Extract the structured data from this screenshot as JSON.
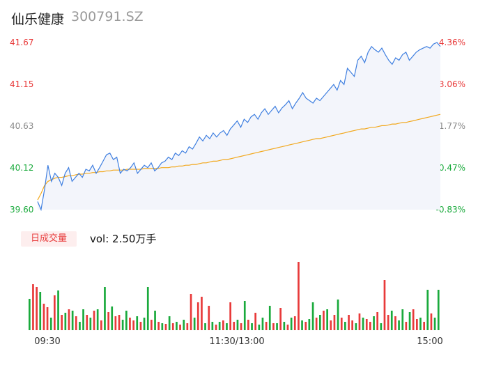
{
  "header": {
    "name": "仙乐健康",
    "code": "300791.SZ"
  },
  "volume_panel": {
    "badge": "日成交量",
    "volume_text": "vol: 2.50万手"
  },
  "colors": {
    "price": "#3f7fe0",
    "avg": "#f2a81d",
    "up": "#e83a3a",
    "down": "#1aaa3c",
    "area": "#f3f5fb",
    "neutral": "#888888"
  },
  "chart_data": {
    "type": "line",
    "title": "",
    "y_left_ticks": [
      "41.67",
      "41.15",
      "40.63",
      "40.12",
      "39.60"
    ],
    "y_right_ticks": [
      "4.36%",
      "3.06%",
      "1.77%",
      "0.47%",
      "-0.83%"
    ],
    "y_left_range": [
      39.6,
      41.67
    ],
    "x_ticks": [
      "09:30",
      "11:30/13:00",
      "15:00"
    ],
    "series": [
      {
        "values": [
          39.7,
          39.6,
          39.85,
          40.15,
          39.95,
          40.05,
          40.0,
          39.9,
          40.05,
          40.12,
          39.95,
          40.0,
          40.05,
          40.0,
          40.1,
          40.08,
          40.15,
          40.05,
          40.12,
          40.2,
          40.28,
          40.3,
          40.22,
          40.25,
          40.05,
          40.1,
          40.08,
          40.12,
          40.18,
          40.05,
          40.1,
          40.15,
          40.12,
          40.18,
          40.08,
          40.12,
          40.18,
          40.2,
          40.25,
          40.22,
          40.3,
          40.27,
          40.33,
          40.3,
          40.38,
          40.35,
          40.42,
          40.5,
          40.45,
          40.52,
          40.48,
          40.55,
          40.5,
          40.55,
          40.58,
          40.52,
          40.6,
          40.65,
          40.7,
          40.62,
          40.72,
          40.68,
          40.75,
          40.78,
          40.72,
          40.8,
          40.85,
          40.78,
          40.83,
          40.88,
          40.8,
          40.86,
          40.9,
          40.95,
          40.85,
          40.92,
          40.98,
          41.05,
          40.98,
          40.95,
          40.92,
          40.98,
          40.95,
          41.0,
          41.05,
          41.1,
          41.15,
          41.08,
          41.2,
          41.15,
          41.35,
          41.3,
          41.25,
          41.45,
          41.5,
          41.42,
          41.55,
          41.62,
          41.58,
          41.55,
          41.6,
          41.52,
          41.45,
          41.4,
          41.48,
          41.45,
          41.52,
          41.55,
          41.45,
          41.5,
          41.55,
          41.58,
          41.6,
          41.62,
          41.6,
          41.65,
          41.67,
          41.62
        ],
        "label_visible": false
      },
      {
        "values": [
          39.72,
          39.8,
          39.9,
          39.95,
          39.97,
          39.99,
          40.0,
          40.0,
          40.01,
          40.02,
          40.02,
          40.03,
          40.04,
          40.04,
          40.05,
          40.05,
          40.06,
          40.06,
          40.07,
          40.07,
          40.08,
          40.08,
          40.09,
          40.09,
          40.09,
          40.09,
          40.1,
          40.1,
          40.1,
          40.1,
          40.1,
          40.11,
          40.11,
          40.11,
          40.11,
          40.11,
          40.12,
          40.12,
          40.12,
          40.13,
          40.13,
          40.14,
          40.14,
          40.15,
          40.15,
          40.16,
          40.16,
          40.17,
          40.18,
          40.18,
          40.19,
          40.2,
          40.2,
          40.21,
          40.22,
          40.22,
          40.23,
          40.24,
          40.25,
          40.26,
          40.27,
          40.28,
          40.29,
          40.3,
          40.31,
          40.32,
          40.33,
          40.34,
          40.35,
          40.36,
          40.37,
          40.38,
          40.39,
          40.4,
          40.41,
          40.42,
          40.43,
          40.44,
          40.45,
          40.46,
          40.47,
          40.48,
          40.48,
          40.49,
          40.5,
          40.51,
          40.52,
          40.53,
          40.54,
          40.55,
          40.56,
          40.57,
          40.58,
          40.59,
          40.6,
          40.6,
          40.61,
          40.62,
          40.62,
          40.63,
          40.64,
          40.64,
          40.65,
          40.66,
          40.66,
          40.67,
          40.68,
          40.68,
          40.69,
          40.7,
          40.71,
          40.72,
          40.73,
          40.74,
          40.75,
          40.76,
          40.77,
          40.78
        ],
        "label_visible": false
      }
    ],
    "volume": [
      {
        "v": 45,
        "d": "down"
      },
      {
        "v": 66,
        "d": "up"
      },
      {
        "v": 62,
        "d": "up"
      },
      {
        "v": 55,
        "d": "down"
      },
      {
        "v": 38,
        "d": "up"
      },
      {
        "v": 33,
        "d": "up"
      },
      {
        "v": 18,
        "d": "down"
      },
      {
        "v": 50,
        "d": "up"
      },
      {
        "v": 57,
        "d": "down"
      },
      {
        "v": 22,
        "d": "up"
      },
      {
        "v": 25,
        "d": "down"
      },
      {
        "v": 30,
        "d": "up"
      },
      {
        "v": 28,
        "d": "down"
      },
      {
        "v": 20,
        "d": "up"
      },
      {
        "v": 12,
        "d": "down"
      },
      {
        "v": 30,
        "d": "down"
      },
      {
        "v": 22,
        "d": "up"
      },
      {
        "v": 18,
        "d": "down"
      },
      {
        "v": 28,
        "d": "up"
      },
      {
        "v": 30,
        "d": "down"
      },
      {
        "v": 14,
        "d": "up"
      },
      {
        "v": 62,
        "d": "down"
      },
      {
        "v": 26,
        "d": "up"
      },
      {
        "v": 34,
        "d": "down"
      },
      {
        "v": 20,
        "d": "up"
      },
      {
        "v": 22,
        "d": "up"
      },
      {
        "v": 15,
        "d": "down"
      },
      {
        "v": 28,
        "d": "down"
      },
      {
        "v": 18,
        "d": "up"
      },
      {
        "v": 14,
        "d": "up"
      },
      {
        "v": 20,
        "d": "down"
      },
      {
        "v": 12,
        "d": "up"
      },
      {
        "v": 18,
        "d": "down"
      },
      {
        "v": 62,
        "d": "down"
      },
      {
        "v": 15,
        "d": "up"
      },
      {
        "v": 28,
        "d": "down"
      },
      {
        "v": 12,
        "d": "up"
      },
      {
        "v": 10,
        "d": "down"
      },
      {
        "v": 9,
        "d": "up"
      },
      {
        "v": 20,
        "d": "down"
      },
      {
        "v": 10,
        "d": "up"
      },
      {
        "v": 12,
        "d": "down"
      },
      {
        "v": 8,
        "d": "up"
      },
      {
        "v": 15,
        "d": "down"
      },
      {
        "v": 10,
        "d": "up"
      },
      {
        "v": 52,
        "d": "up"
      },
      {
        "v": 18,
        "d": "down"
      },
      {
        "v": 40,
        "d": "up"
      },
      {
        "v": 48,
        "d": "up"
      },
      {
        "v": 10,
        "d": "down"
      },
      {
        "v": 35,
        "d": "up"
      },
      {
        "v": 12,
        "d": "down"
      },
      {
        "v": 8,
        "d": "up"
      },
      {
        "v": 12,
        "d": "down"
      },
      {
        "v": 14,
        "d": "up"
      },
      {
        "v": 10,
        "d": "down"
      },
      {
        "v": 40,
        "d": "up"
      },
      {
        "v": 12,
        "d": "up"
      },
      {
        "v": 15,
        "d": "down"
      },
      {
        "v": 10,
        "d": "up"
      },
      {
        "v": 42,
        "d": "down"
      },
      {
        "v": 15,
        "d": "up"
      },
      {
        "v": 10,
        "d": "down"
      },
      {
        "v": 25,
        "d": "up"
      },
      {
        "v": 8,
        "d": "down"
      },
      {
        "v": 18,
        "d": "down"
      },
      {
        "v": 12,
        "d": "up"
      },
      {
        "v": 35,
        "d": "down"
      },
      {
        "v": 10,
        "d": "up"
      },
      {
        "v": 10,
        "d": "down"
      },
      {
        "v": 32,
        "d": "up"
      },
      {
        "v": 12,
        "d": "down"
      },
      {
        "v": 8,
        "d": "up"
      },
      {
        "v": 18,
        "d": "down"
      },
      {
        "v": 20,
        "d": "up"
      },
      {
        "v": 98,
        "d": "up"
      },
      {
        "v": 14,
        "d": "down"
      },
      {
        "v": 12,
        "d": "up"
      },
      {
        "v": 16,
        "d": "down"
      },
      {
        "v": 40,
        "d": "down"
      },
      {
        "v": 18,
        "d": "up"
      },
      {
        "v": 22,
        "d": "down"
      },
      {
        "v": 28,
        "d": "up"
      },
      {
        "v": 30,
        "d": "down"
      },
      {
        "v": 14,
        "d": "up"
      },
      {
        "v": 22,
        "d": "up"
      },
      {
        "v": 44,
        "d": "down"
      },
      {
        "v": 18,
        "d": "up"
      },
      {
        "v": 12,
        "d": "down"
      },
      {
        "v": 22,
        "d": "up"
      },
      {
        "v": 14,
        "d": "up"
      },
      {
        "v": 10,
        "d": "down"
      },
      {
        "v": 24,
        "d": "up"
      },
      {
        "v": 18,
        "d": "down"
      },
      {
        "v": 16,
        "d": "up"
      },
      {
        "v": 12,
        "d": "up"
      },
      {
        "v": 20,
        "d": "down"
      },
      {
        "v": 26,
        "d": "up"
      },
      {
        "v": 10,
        "d": "down"
      },
      {
        "v": 72,
        "d": "up"
      },
      {
        "v": 22,
        "d": "up"
      },
      {
        "v": 28,
        "d": "down"
      },
      {
        "v": 20,
        "d": "up"
      },
      {
        "v": 14,
        "d": "down"
      },
      {
        "v": 30,
        "d": "down"
      },
      {
        "v": 12,
        "d": "up"
      },
      {
        "v": 26,
        "d": "down"
      },
      {
        "v": 30,
        "d": "up"
      },
      {
        "v": 16,
        "d": "up"
      },
      {
        "v": 18,
        "d": "down"
      },
      {
        "v": 12,
        "d": "up"
      },
      {
        "v": 58,
        "d": "down"
      },
      {
        "v": 24,
        "d": "up"
      },
      {
        "v": 18,
        "d": "down"
      },
      {
        "v": 58,
        "d": "down"
      }
    ]
  }
}
